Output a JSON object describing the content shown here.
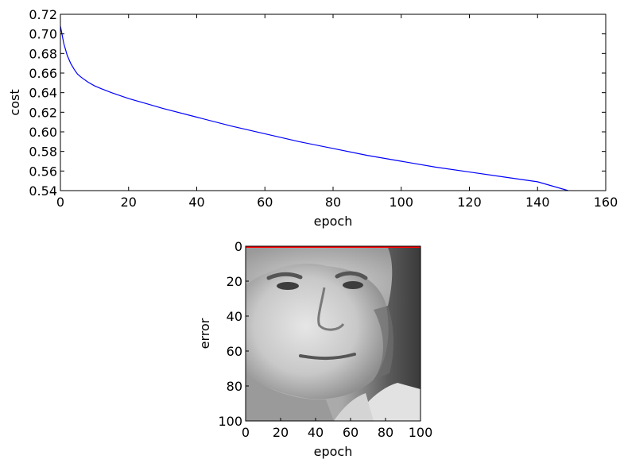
{
  "chart_data": [
    {
      "type": "line",
      "title": "",
      "xlabel": "epoch",
      "ylabel": "cost",
      "xlim": [
        0,
        160
      ],
      "ylim": [
        0.54,
        0.72
      ],
      "x_ticks": [
        "0",
        "20",
        "40",
        "60",
        "80",
        "100",
        "120",
        "140",
        "160"
      ],
      "y_ticks": [
        "0.54",
        "0.56",
        "0.58",
        "0.60",
        "0.62",
        "0.64",
        "0.66",
        "0.68",
        "0.70",
        "0.72"
      ],
      "grid": false,
      "series": [
        {
          "color": "#0000ff",
          "x": [
            0,
            1,
            2,
            3,
            4,
            5,
            6,
            8,
            10,
            12,
            15,
            20,
            25,
            30,
            40,
            50,
            60,
            70,
            80,
            90,
            100,
            110,
            120,
            130,
            140,
            149
          ],
          "y": [
            0.708,
            0.69,
            0.678,
            0.67,
            0.664,
            0.659,
            0.656,
            0.651,
            0.647,
            0.644,
            0.64,
            0.634,
            0.629,
            0.624,
            0.615,
            0.606,
            0.598,
            0.59,
            0.583,
            0.576,
            0.57,
            0.564,
            0.559,
            0.554,
            0.549,
            0.54
          ]
        }
      ]
    },
    {
      "type": "heatmap",
      "title": "",
      "xlabel": "epoch",
      "ylabel": "error",
      "xlim": [
        0,
        100
      ],
      "ylim": [
        100,
        0
      ],
      "x_ticks": [
        "0",
        "20",
        "40",
        "60",
        "80",
        "100"
      ],
      "y_ticks": [
        "0",
        "20",
        "40",
        "60",
        "80",
        "100"
      ],
      "image": "grayscale face photograph",
      "overlay_line": {
        "color": "#ff0000",
        "x": [
          0,
          100
        ],
        "y": [
          0,
          0
        ]
      }
    }
  ]
}
